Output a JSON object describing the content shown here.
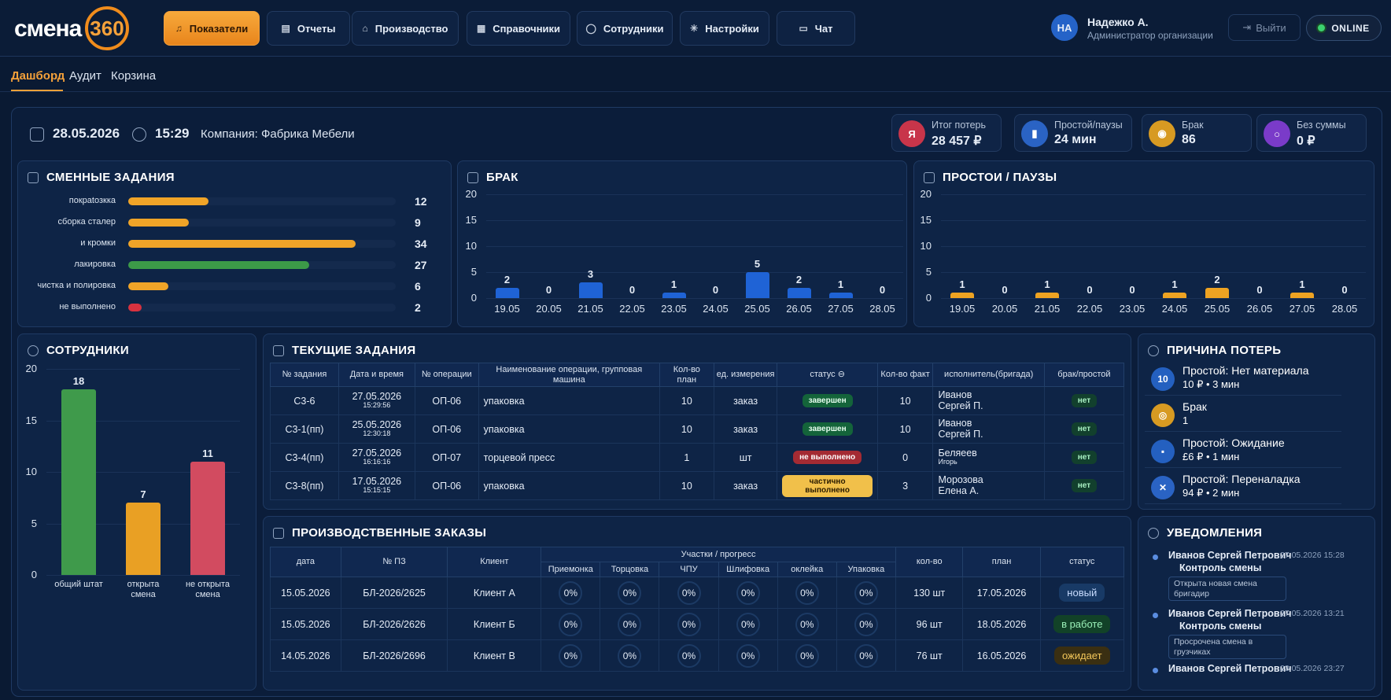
{
  "app": {
    "logo_text": "смена",
    "logo_num": "360"
  },
  "nav": [
    {
      "label": "Показатели",
      "icon": "bell-icon",
      "active": true
    },
    {
      "label": "Отчеты",
      "icon": "document-icon",
      "active": false
    },
    {
      "label": "Производство",
      "icon": "factory-icon",
      "active": false
    },
    {
      "label": "Справочники",
      "icon": "grid-icon",
      "active": false
    },
    {
      "label": "Сотрудники",
      "icon": "user-icon",
      "active": false
    },
    {
      "label": "Настройки",
      "icon": "gear-icon",
      "active": false
    },
    {
      "label": "Чат",
      "icon": "chat-icon",
      "active": false
    }
  ],
  "user": {
    "initials": "НА",
    "name": "Надежко А.",
    "role": "Администратор организации"
  },
  "logout_label": "Выйти",
  "online_label": "ONLINE",
  "tabs": [
    {
      "label": "Дашборд",
      "active": true
    },
    {
      "label": "Аудит",
      "active": false
    },
    {
      "label": "Корзина",
      "active": false
    }
  ],
  "info": {
    "date": "28.05.2026",
    "time": "15:29",
    "company": "Компания: Фабрика Мебели"
  },
  "kpis": [
    {
      "label": "Итог потерь",
      "value": "28 457 ₽",
      "icon": "Я",
      "color": "#c8354a"
    },
    {
      "label": "Простой/паузы",
      "value": "24 мин",
      "icon": "▮",
      "color": "#2a63c4"
    },
    {
      "label": "Брак",
      "value": "86",
      "icon": "◉",
      "color": "#d79a22"
    },
    {
      "label": "Без суммы",
      "value": "0 ₽",
      "icon": "○",
      "color": "#7a3bc9"
    }
  ],
  "panels": {
    "shift": "СМЕННЫЕ ЗАДАНИЯ",
    "defect": "БРАК",
    "downtime": "ПРОСТОИ / ПАУЗЫ",
    "staff": "СОТРУДНИКИ",
    "current": "ТЕКУЩИЕ ЗАДАНИЯ",
    "orders": "ПРОИЗВОДСТВЕННЫЕ ЗАКАЗЫ",
    "loss": "ПРИЧИНА ПОТЕРЬ",
    "notif": "УВЕДОМЛЕНИЯ"
  },
  "shift_tasks": [
    {
      "label": "покраtозкка",
      "value": 12,
      "color": "#f0a428"
    },
    {
      "label": "сборка сталер",
      "value": 9,
      "color": "#f0a428"
    },
    {
      "label": "и кромки",
      "value": 34,
      "color": "#f0a428"
    },
    {
      "label": "лакировка",
      "value": 27,
      "color": "#3c9a48"
    },
    {
      "label": "чистка и полировка",
      "value": 6,
      "color": "#f0a428"
    },
    {
      "label": "не выполнено",
      "value": 2,
      "color": "#d8323f"
    }
  ],
  "chart_data": [
    {
      "type": "bar",
      "title": "БРАК",
      "categories": [
        "19.05",
        "20.05",
        "21.05",
        "22.05",
        "23.05",
        "24.05",
        "25.05",
        "26.05",
        "27.05",
        "28.05"
      ],
      "values": [
        2,
        0,
        3,
        0,
        1,
        0,
        5,
        2,
        1,
        0
      ],
      "ylim": [
        0,
        20
      ],
      "yticks": [
        0,
        5,
        10,
        15,
        20
      ],
      "color": "#1f63d6"
    },
    {
      "type": "bar",
      "title": "ПРОСТОИ / ПАУЗЫ",
      "categories": [
        "19.05",
        "20.05",
        "21.05",
        "22.05",
        "23.05",
        "24.05",
        "25.05",
        "26.05",
        "27.05",
        "28.05"
      ],
      "values": [
        1,
        0,
        1,
        0,
        0,
        1,
        2,
        0,
        1,
        0
      ],
      "ylim": [
        0,
        20
      ],
      "yticks": [
        0,
        5,
        10,
        15,
        20
      ],
      "color": "#eea322"
    },
    {
      "type": "bar",
      "title": "СОТРУДНИКИ",
      "categories": [
        "общий штат",
        "открыта смена",
        "не открыта смена"
      ],
      "values": [
        18,
        7,
        11
      ],
      "colors": [
        "#3f9a4b",
        "#e9a024",
        "#d24b60"
      ],
      "ylim": [
        0,
        20
      ],
      "yticks": [
        0,
        5,
        10,
        15,
        20
      ]
    }
  ],
  "current_tasks": {
    "headers": [
      "№ задания",
      "Дата и время",
      "№ операции",
      "Наименование операции, групповая машина",
      "Кол-во план",
      "ед. измерения",
      "статус ⊖",
      "Кол-во факт",
      "исполнитель(бригада)",
      "брак/простой"
    ],
    "rows": [
      {
        "id": "С3-6",
        "date": "27.05.2026",
        "time": "15:29:56",
        "op": "ОП-06",
        "name": "упаковка",
        "plan": "10",
        "unit": "заказ",
        "status": "завершен",
        "status_class": "b-green",
        "fact": "10",
        "exec1": "Иванов",
        "exec2": "Сергей П.",
        "defect": "нет"
      },
      {
        "id": "С3-1(пп)",
        "date": "25.05.2026",
        "time": "12:30:18",
        "op": "ОП-06",
        "name": "упаковка",
        "plan": "10",
        "unit": "заказ",
        "status": "завершен",
        "status_class": "b-green",
        "fact": "10",
        "exec1": "Иванов",
        "exec2": "Сергей П.",
        "defect": "нет"
      },
      {
        "id": "С3-4(пп)",
        "date": "27.05.2026",
        "time": "16:16:16",
        "op": "ОП-07",
        "name": "торцевой пресс",
        "plan": "1",
        "unit": "шт",
        "status": "не выполнено",
        "status_class": "b-red",
        "fact": "0",
        "exec1": "Беляеев",
        "exec2": "Игорь",
        "defect": "нет"
      },
      {
        "id": "С3-8(пп)",
        "date": "17.05.2026",
        "time": "15:15:15",
        "op": "ОП-06",
        "name": "упаковка",
        "plan": "10",
        "unit": "заказ",
        "status": "частично выполнено",
        "status_class": "b-yellow",
        "fact": "3",
        "exec1": "Морозова",
        "exec2": "Елена А.",
        "defect": "нет"
      }
    ]
  },
  "orders": {
    "headers": {
      "date": "дата",
      "num": "№ ПЗ",
      "client": "Клиент",
      "sections": "Участки / прогресс",
      "qty": "кол-во",
      "plan": "план",
      "status": "статус"
    },
    "sections": [
      "Приемонка",
      "Торцовка",
      "ЧПУ",
      "Шлифовка",
      "оклейка",
      "Упаковка"
    ],
    "rows": [
      {
        "date": "15.05.2026",
        "num": "БЛ-2026/2625",
        "client": "Клиент А",
        "p": [
          "0%",
          "0%",
          "0%",
          "0%",
          "0%",
          "0%"
        ],
        "qty": "130 шт",
        "plan": "17.05.2026",
        "status": "новый",
        "bg": "#183a66",
        "fg": "#c8dcff"
      },
      {
        "date": "15.05.2026",
        "num": "БЛ-2026/2626",
        "client": "Клиент Б",
        "p": [
          "0%",
          "0%",
          "0%",
          "0%",
          "0%",
          "0%"
        ],
        "qty": "96 шт",
        "plan": "18.05.2026",
        "status": "в работе",
        "bg": "#124228",
        "fg": "#9af0b8"
      },
      {
        "date": "14.05.2026",
        "num": "БЛ-2026/2696",
        "client": "Клиент В",
        "p": [
          "0%",
          "0%",
          "0%",
          "0%",
          "0%",
          "0%"
        ],
        "qty": "76 шт",
        "plan": "16.05.2026",
        "status": "ожидает",
        "bg": "#3a2f12",
        "fg": "#f2c65a"
      }
    ]
  },
  "loss_reasons": [
    {
      "title": "Простой: Нет материала",
      "sub": "10 ₽ • 3 мин",
      "icon": "10",
      "color": "#2460c0"
    },
    {
      "title": "Брак",
      "sub": "1",
      "icon": "◎",
      "color": "#d79a22"
    },
    {
      "title": "Простой: Ожидание",
      "sub": "£6 ₽ • 1 мин",
      "icon": "▪",
      "color": "#2460c0"
    },
    {
      "title": "Простой: Переналадка",
      "sub": "94 ₽ • 2 мин",
      "icon": "✕",
      "color": "#2a63c4"
    }
  ],
  "notifications": [
    {
      "name": "Иванов Сергей Петрович",
      "sub": "Контроль смены",
      "time": "27.05.2026 15:28",
      "msg": "Открыта новая смена бригадир"
    },
    {
      "name": "Иванов Сергей Петрович",
      "sub": "Контроль смены",
      "time": "27.05.2026 13:21",
      "msg": "Просрочена смена в грузчиках"
    },
    {
      "name": "Иванов Сергей Петрович",
      "sub": "",
      "time": "23.05.2026 23:27",
      "msg": ""
    }
  ]
}
